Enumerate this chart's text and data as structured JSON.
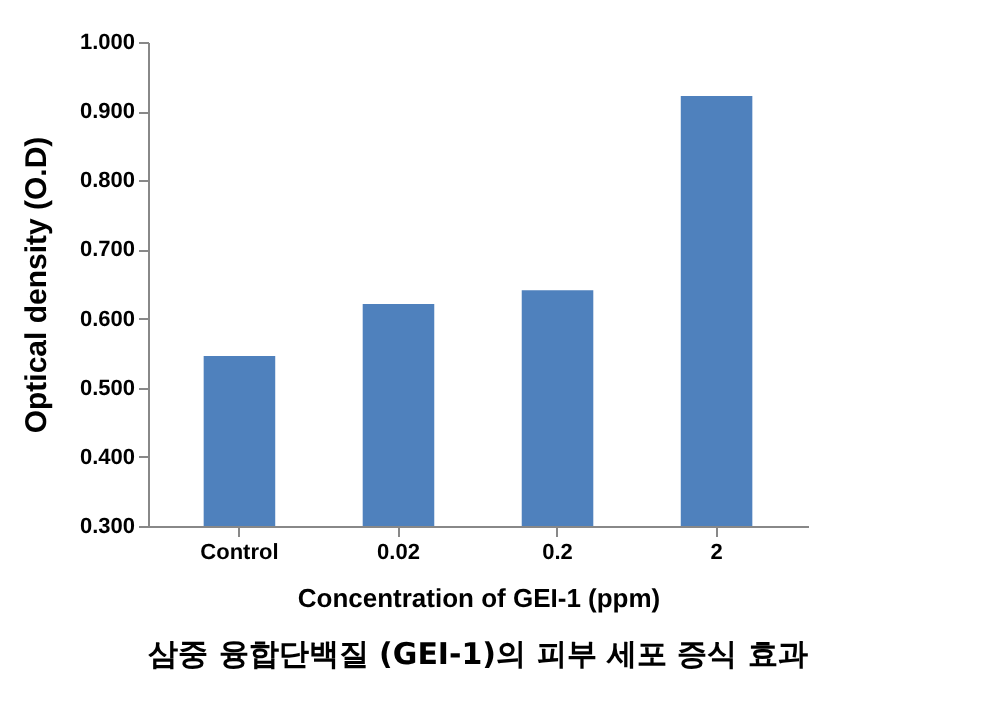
{
  "chart_data": {
    "type": "bar",
    "title": "삼중 융합단백질 (GEI-1)의 피부 세포 증식 효과",
    "xlabel": "Concentration of GEI-1 (ppm)",
    "ylabel": "Optical density (O.D)",
    "categories": [
      "Control",
      "0.02",
      "0.2",
      "2"
    ],
    "values": [
      0.546,
      0.621,
      0.641,
      0.922
    ],
    "color": "#4f81bd",
    "ylim": [
      0.3,
      1.0
    ],
    "yticks": [
      {
        "value": 0.3,
        "label": "0.300"
      },
      {
        "value": 0.4,
        "label": "0.400"
      },
      {
        "value": 0.5,
        "label": "0.500"
      },
      {
        "value": 0.6,
        "label": "0.600"
      },
      {
        "value": 0.7,
        "label": "0.700"
      },
      {
        "value": 0.8,
        "label": "0.800"
      },
      {
        "value": 0.9,
        "label": "0.900"
      },
      {
        "value": 1.0,
        "label": "1.000"
      }
    ],
    "grid": false
  }
}
